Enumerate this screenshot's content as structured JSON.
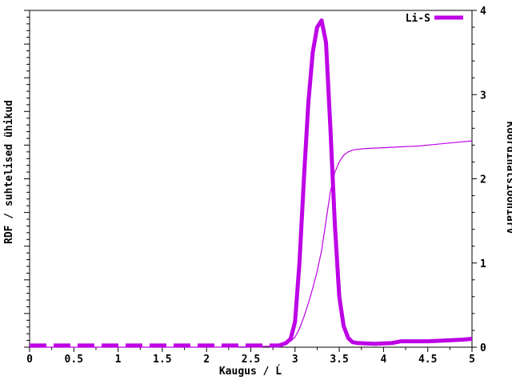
{
  "chart_data": {
    "type": "line",
    "xlabel": "Kaugus / Ĺ",
    "ylabel_left": "RDF / suhtelised ühikud",
    "ylabel_right": "Koordinatsiooniarv",
    "xlim": [
      0,
      5
    ],
    "ylim_right": [
      0,
      4
    ],
    "x_ticks": [
      0,
      0.5,
      1,
      1.5,
      2,
      2.5,
      3,
      3.5,
      4,
      4.5,
      5
    ],
    "x_tick_labels": [
      "0",
      "0.5",
      "1",
      "1.5",
      "2",
      "2.5",
      "3",
      "3.5",
      "4",
      "4.5",
      "5"
    ],
    "x_minor_step": 0.25,
    "y_right_ticks": [
      0,
      1,
      2,
      3,
      4
    ],
    "y_right_tick_labels": [
      "0",
      "1",
      "2",
      "3",
      "4"
    ],
    "y_right_minor_step": 0.2,
    "y_left_tick_count": 50,
    "y_left_major_every": 5,
    "grid": false,
    "legend_position": "top-right-inside",
    "legend": [
      {
        "label": "Li-S",
        "color": "#BE00E6",
        "style": "thick"
      }
    ],
    "colors": {
      "accent": "#BE00E6",
      "axis": "#000000",
      "background": "#ffffff"
    },
    "series": [
      {
        "name": "Li-S",
        "axis": "left",
        "style": "thick",
        "dash_until_x": 2.82,
        "points": [
          [
            0,
            0.02
          ],
          [
            0.5,
            0.02
          ],
          [
            1,
            0.02
          ],
          [
            1.5,
            0.02
          ],
          [
            2,
            0.02
          ],
          [
            2.5,
            0.02
          ],
          [
            2.82,
            0.02
          ],
          [
            2.9,
            0.05
          ],
          [
            2.95,
            0.1
          ],
          [
            3.0,
            0.3
          ],
          [
            3.05,
            1.0
          ],
          [
            3.1,
            2.0
          ],
          [
            3.15,
            2.9
          ],
          [
            3.2,
            3.5
          ],
          [
            3.25,
            3.8
          ],
          [
            3.3,
            3.88
          ],
          [
            3.35,
            3.62
          ],
          [
            3.4,
            2.6
          ],
          [
            3.45,
            1.45
          ],
          [
            3.5,
            0.6
          ],
          [
            3.55,
            0.25
          ],
          [
            3.6,
            0.11
          ],
          [
            3.65,
            0.06
          ],
          [
            3.7,
            0.05
          ],
          [
            3.9,
            0.04
          ],
          [
            4.1,
            0.05
          ],
          [
            4.2,
            0.07
          ],
          [
            4.5,
            0.07
          ],
          [
            4.7,
            0.08
          ],
          [
            4.9,
            0.09
          ],
          [
            5,
            0.1
          ]
        ]
      },
      {
        "name": "Koordinatsiooniarv",
        "axis": "right",
        "style": "thin",
        "points": [
          [
            0,
            0
          ],
          [
            0.5,
            0
          ],
          [
            1,
            0
          ],
          [
            1.5,
            0
          ],
          [
            2,
            0
          ],
          [
            2.5,
            0.005
          ],
          [
            2.7,
            0.01
          ],
          [
            2.85,
            0.03
          ],
          [
            2.95,
            0.07
          ],
          [
            3.0,
            0.12
          ],
          [
            3.05,
            0.22
          ],
          [
            3.1,
            0.36
          ],
          [
            3.15,
            0.52
          ],
          [
            3.2,
            0.7
          ],
          [
            3.25,
            0.9
          ],
          [
            3.3,
            1.15
          ],
          [
            3.35,
            1.5
          ],
          [
            3.4,
            1.85
          ],
          [
            3.45,
            2.08
          ],
          [
            3.5,
            2.2
          ],
          [
            3.55,
            2.28
          ],
          [
            3.6,
            2.32
          ],
          [
            3.65,
            2.34
          ],
          [
            3.7,
            2.35
          ],
          [
            3.8,
            2.36
          ],
          [
            4.0,
            2.37
          ],
          [
            4.2,
            2.38
          ],
          [
            4.4,
            2.39
          ],
          [
            4.6,
            2.41
          ],
          [
            4.8,
            2.43
          ],
          [
            5.0,
            2.45
          ]
        ]
      }
    ]
  }
}
